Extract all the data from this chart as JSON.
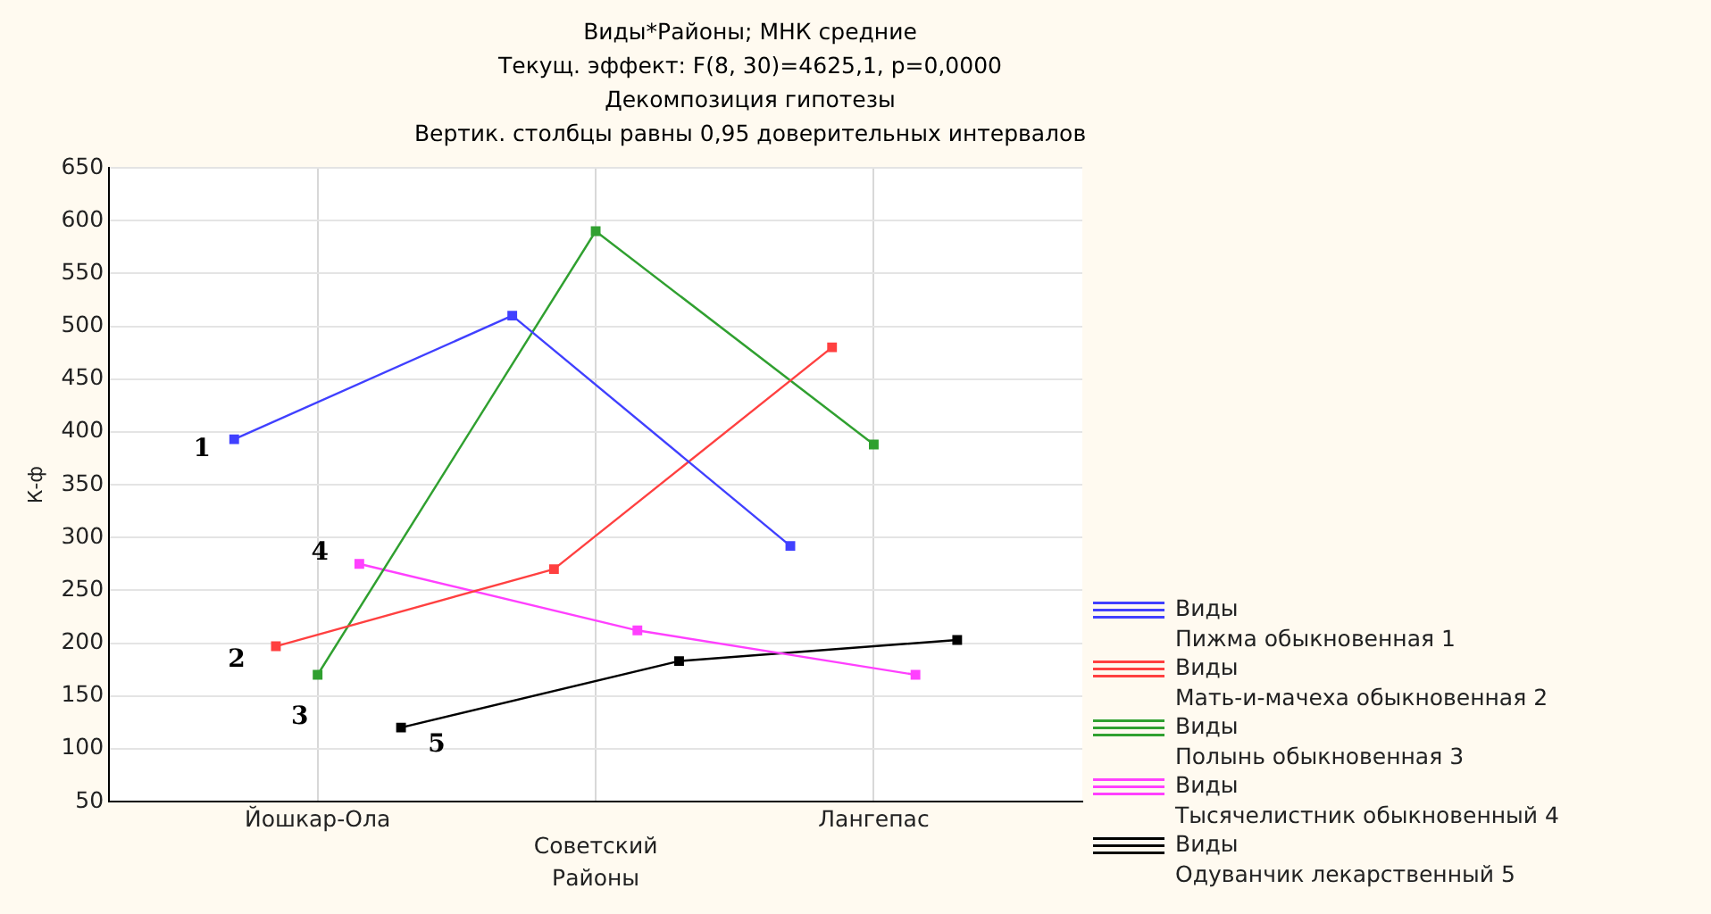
{
  "chart_data": {
    "type": "line",
    "title": "Виды*Районы; МНК средние",
    "subtitle": "Текущ. эффект: F(8, 30)=4625,1, p=0,0000\nДекомпозиция гипотезы\nВертик. столбцы равны 0,95 доверительных интервалов",
    "xlabel": "Районы",
    "ylabel": "К-ф",
    "categories": [
      "Йошкар-Ола",
      "Советский",
      "Лангепас"
    ],
    "series": [
      {
        "name": "Виды\nПижма обыкновенная 1",
        "color": "#4040ff",
        "values": [
          393,
          510,
          292
        ]
      },
      {
        "name": "Виды\nМать-и-мачеха обыкновенная 2",
        "color": "#ff4040",
        "values": [
          197,
          270,
          480
        ]
      },
      {
        "name": "Виды\nПолынь обыкновенная 3",
        "color": "#30a030",
        "values": [
          170,
          590,
          388
        ]
      },
      {
        "name": "Виды\nТысячелистник обыкновенный 4",
        "color": "#ff40ff",
        "values": [
          275,
          212,
          170
        ]
      },
      {
        "name": "Виды\nОдуванчик лекарственный 5",
        "color": "#000000",
        "values": [
          120,
          183,
          203
        ]
      }
    ],
    "annotations": [
      "1",
      "2",
      "3",
      "4",
      "5"
    ],
    "ylim": [
      50,
      650
    ],
    "yticks": [
      50,
      100,
      150,
      200,
      250,
      300,
      350,
      400,
      450,
      500,
      550,
      600,
      650
    ],
    "grid": true,
    "legend": "right",
    "marker": "square"
  }
}
